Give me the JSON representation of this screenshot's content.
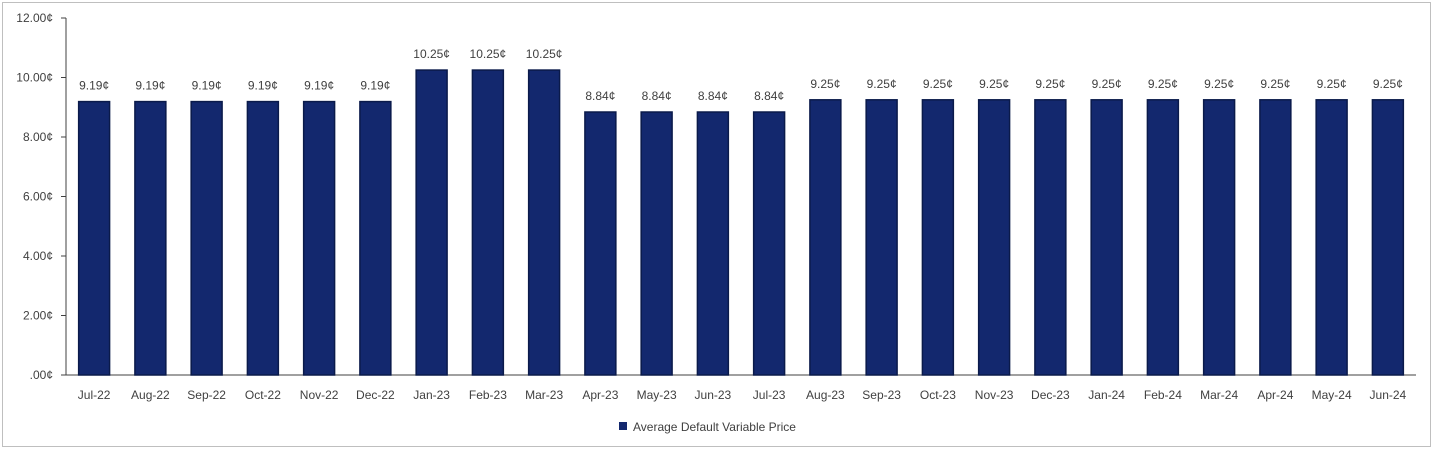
{
  "chart_data": {
    "type": "bar",
    "categories": [
      "Jul-22",
      "Aug-22",
      "Sep-22",
      "Oct-22",
      "Nov-22",
      "Dec-22",
      "Jan-23",
      "Feb-23",
      "Mar-23",
      "Apr-23",
      "May-23",
      "Jun-23",
      "Jul-23",
      "Aug-23",
      "Sep-23",
      "Oct-23",
      "Nov-23",
      "Dec-23",
      "Jan-24",
      "Feb-24",
      "Mar-24",
      "Apr-24",
      "May-24",
      "Jun-24"
    ],
    "series": [
      {
        "name": "Average Default Variable Price",
        "color": "#13286e",
        "values": [
          9.19,
          9.19,
          9.19,
          9.19,
          9.19,
          9.19,
          10.25,
          10.25,
          10.25,
          8.84,
          8.84,
          8.84,
          8.84,
          9.25,
          9.25,
          9.25,
          9.25,
          9.25,
          9.25,
          9.25,
          9.25,
          9.25,
          9.25,
          9.25
        ],
        "data_labels": [
          "9.19¢",
          "9.19¢",
          "9.19¢",
          "9.19¢",
          "9.19¢",
          "9.19¢",
          "10.25¢",
          "10.25¢",
          "10.25¢",
          "8.84¢",
          "8.84¢",
          "8.84¢",
          "8.84¢",
          "9.25¢",
          "9.25¢",
          "9.25¢",
          "9.25¢",
          "9.25¢",
          "9.25¢",
          "9.25¢",
          "9.25¢",
          "9.25¢",
          "9.25¢",
          "9.25¢"
        ]
      }
    ],
    "yticks": [
      {
        "value": 0,
        "label": ".00¢"
      },
      {
        "value": 2,
        "label": "2.00¢"
      },
      {
        "value": 4,
        "label": "4.00¢"
      },
      {
        "value": 6,
        "label": "6.00¢"
      },
      {
        "value": 8,
        "label": "8.00¢"
      },
      {
        "value": 10,
        "label": "10.00¢"
      },
      {
        "value": 12,
        "label": "12.00¢"
      }
    ],
    "ylim": [
      0,
      12
    ],
    "title": "",
    "xlabel": "",
    "ylabel": "",
    "grid": false,
    "legend_position": "bottom"
  }
}
